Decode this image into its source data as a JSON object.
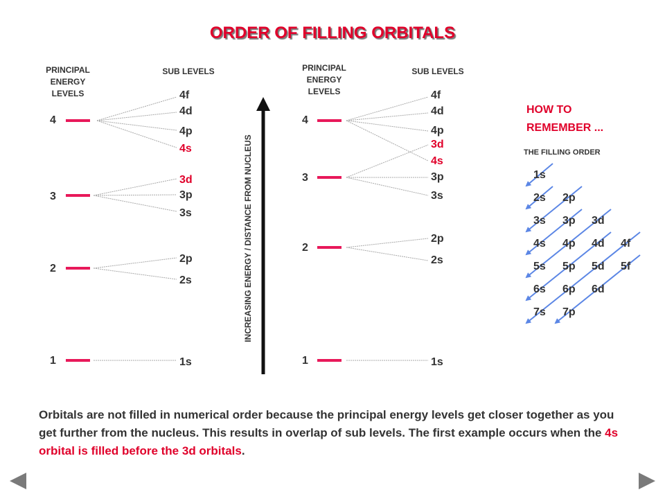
{
  "title": "ORDER OF FILLING ORBITALS",
  "left_diagram": {
    "principal_header": "PRINCIPAL\nENERGY\nLEVELS",
    "sub_header": "SUB LEVELS",
    "levels": [
      {
        "label": "4",
        "sublevels": [
          {
            "text": "4f",
            "highlight": false
          },
          {
            "text": "4d",
            "highlight": false
          },
          {
            "text": "4p",
            "highlight": false
          },
          {
            "text": "4s",
            "highlight": true
          }
        ]
      },
      {
        "label": "3",
        "sublevels": [
          {
            "text": "3d",
            "highlight": true
          },
          {
            "text": "3p",
            "highlight": false
          },
          {
            "text": "3s",
            "highlight": false
          }
        ]
      },
      {
        "label": "2",
        "sublevels": [
          {
            "text": "2p",
            "highlight": false
          },
          {
            "text": "2s",
            "highlight": false
          }
        ]
      },
      {
        "label": "1",
        "sublevels": [
          {
            "text": "1s",
            "highlight": false
          }
        ]
      }
    ]
  },
  "axis_label": "INCREASING ENERGY / DISTANCE FROM NUCLEUS",
  "right_diagram": {
    "principal_header": "PRINCIPAL\nENERGY\nLEVELS",
    "sub_header": "SUB LEVELS",
    "levels": [
      {
        "label": "4",
        "sublevels": [
          {
            "text": "4f",
            "highlight": false
          },
          {
            "text": "4d",
            "highlight": false
          },
          {
            "text": "4p",
            "highlight": false
          },
          {
            "text": "4s",
            "highlight": true
          }
        ]
      },
      {
        "label": "3",
        "sublevels": [
          {
            "text": "3d",
            "highlight": true
          },
          {
            "text": "3p",
            "highlight": false
          },
          {
            "text": "3s",
            "highlight": false
          }
        ]
      },
      {
        "label": "2",
        "sublevels": [
          {
            "text": "2p",
            "highlight": false
          },
          {
            "text": "2s",
            "highlight": false
          }
        ]
      },
      {
        "label": "1",
        "sublevels": [
          {
            "text": "1s",
            "highlight": false
          }
        ]
      }
    ]
  },
  "how_to": {
    "heading": "HOW TO\nREMEMBER ...",
    "subheading": "THE FILLING ORDER",
    "grid": [
      [
        "1s"
      ],
      [
        "2s",
        "2p"
      ],
      [
        "3s",
        "3p",
        "3d"
      ],
      [
        "4s",
        "4p",
        "4d",
        "4f"
      ],
      [
        "5s",
        "5p",
        "5d",
        "5f"
      ],
      [
        "6s",
        "6p",
        "6d"
      ],
      [
        "7s",
        "7p"
      ]
    ]
  },
  "note": {
    "text_before": "Orbitals are not filled in numerical order because the principal energy levels get closer together as you get further from the nucleus.  This results in overlap of sub levels. The first example occurs when the ",
    "text_highlight": "4s orbital is filled before the 3d orbitals",
    "text_after": "."
  },
  "nav": {
    "prev_icon": "triangle-left-icon",
    "next_icon": "triangle-right-icon"
  },
  "colors": {
    "accent": "#e0002a",
    "level_bar": "#e8195a",
    "text": "#333333",
    "arrow_blue": "#5b86e5",
    "nav_grey": "#7a7a7a"
  }
}
